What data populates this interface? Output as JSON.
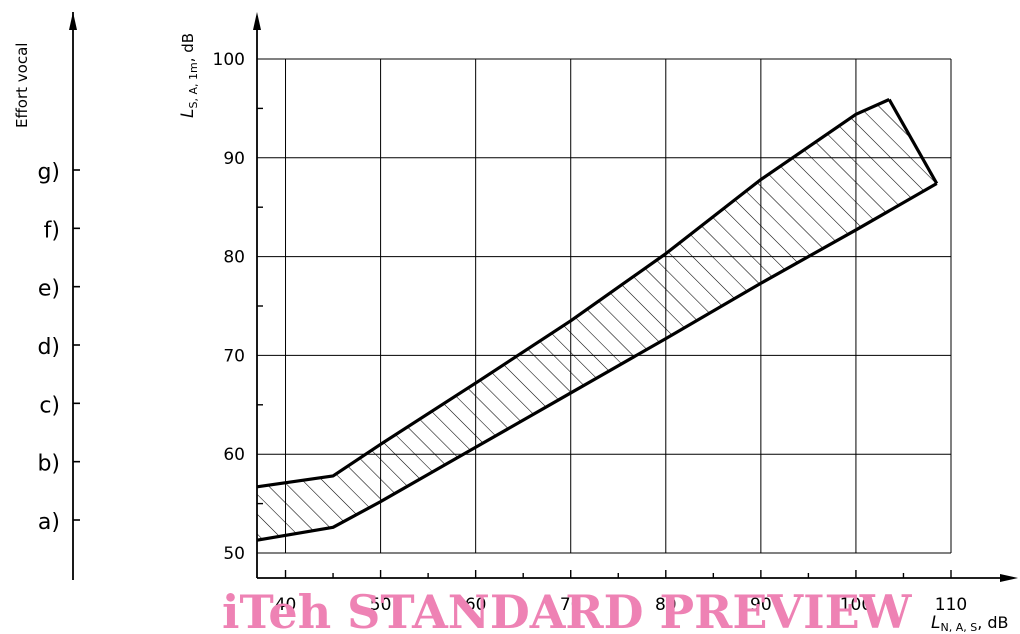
{
  "chart_data": {
    "type": "area",
    "xlabel": {
      "main": "L",
      "subscript": "N, A, S",
      "unit": ", dB"
    },
    "ylabel": {
      "main": "L",
      "subscript": "S, A, 1m",
      "unit": ", dB"
    },
    "x_ticks": [
      40,
      50,
      60,
      70,
      80,
      90,
      100,
      110
    ],
    "y_ticks": [
      50,
      60,
      70,
      80,
      90,
      100
    ],
    "xlim": [
      37,
      110
    ],
    "ylim": [
      50,
      100
    ],
    "grid": true,
    "band": {
      "upper": [
        [
          37,
          56.7
        ],
        [
          45,
          57.8
        ],
        [
          50,
          61
        ],
        [
          60,
          67.2
        ],
        [
          70,
          73.5
        ],
        [
          80,
          80.3
        ],
        [
          90,
          87.8
        ],
        [
          100,
          94.4
        ],
        [
          103.5,
          95.9
        ]
      ],
      "lower": [
        [
          37,
          51.3
        ],
        [
          45,
          52.6
        ],
        [
          50,
          55.2
        ],
        [
          60,
          60.7
        ],
        [
          70,
          66.2
        ],
        [
          80,
          71.7
        ],
        [
          90,
          77.3
        ],
        [
          100,
          82.7
        ],
        [
          108.5,
          87.4
        ]
      ],
      "fill_pattern": "diagonal hatch"
    },
    "effort_axis": {
      "title": "Effort vocal",
      "labels": [
        "a)",
        "b)",
        "c)",
        "d)",
        "e)",
        "f)",
        "g)"
      ]
    }
  },
  "watermark": "iTeh STANDARD PREVIEW"
}
